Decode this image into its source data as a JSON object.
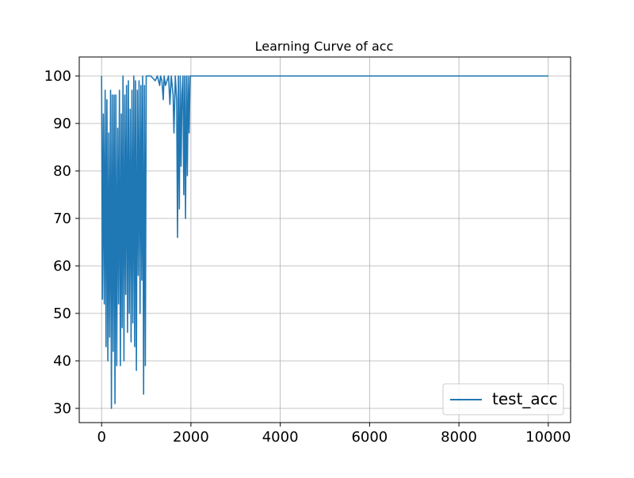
{
  "chart_data": {
    "type": "line",
    "title": "Learning Curve of acc",
    "xlabel": "",
    "ylabel": "",
    "xlim": [
      -500,
      10500
    ],
    "ylim": [
      27,
      104
    ],
    "xticks": [
      0,
      2000,
      4000,
      6000,
      8000,
      10000
    ],
    "xtick_labels": [
      "0",
      "2000",
      "4000",
      "6000",
      "8000",
      "10000"
    ],
    "yticks": [
      30,
      40,
      50,
      60,
      70,
      80,
      90,
      100
    ],
    "ytick_labels": [
      "30",
      "40",
      "50",
      "60",
      "70",
      "80",
      "90",
      "100"
    ],
    "grid": true,
    "legend_position": "lower right",
    "series": [
      {
        "name": "test_acc",
        "color": "#1f77b4",
        "x": [
          0,
          20,
          40,
          60,
          80,
          100,
          120,
          140,
          160,
          180,
          200,
          220,
          240,
          260,
          280,
          300,
          320,
          340,
          360,
          380,
          400,
          420,
          440,
          460,
          480,
          500,
          520,
          540,
          560,
          580,
          600,
          620,
          640,
          660,
          680,
          700,
          720,
          740,
          760,
          780,
          800,
          820,
          840,
          860,
          880,
          900,
          920,
          940,
          960,
          980,
          1000,
          1020,
          1100,
          1200,
          1250,
          1300,
          1320,
          1350,
          1380,
          1400,
          1430,
          1500,
          1530,
          1560,
          1600,
          1620,
          1650,
          1680,
          1700,
          1720,
          1740,
          1760,
          1780,
          1800,
          1820,
          1840,
          1860,
          1880,
          1900,
          1920,
          1940,
          1960,
          1980,
          2000,
          2050,
          3000,
          5000,
          7000,
          10000
        ],
        "y": [
          100,
          53,
          92,
          52,
          97,
          43,
          95,
          40,
          88,
          45,
          97,
          30,
          96,
          42,
          96,
          31,
          96,
          39,
          89,
          52,
          97,
          39,
          92,
          47,
          100,
          40,
          96,
          54,
          98,
          46,
          99,
          50,
          93,
          44,
          97,
          48,
          100,
          43,
          99,
          38,
          97,
          58,
          99,
          50,
          98,
          57,
          100,
          33,
          98,
          39,
          100,
          100,
          100,
          99,
          100,
          98,
          100,
          99,
          95,
          100,
          98,
          100,
          94,
          100,
          96,
          88,
          100,
          95,
          66,
          100,
          72,
          100,
          81,
          96,
          100,
          75,
          100,
          70,
          100,
          79,
          100,
          88,
          100,
          100,
          100,
          100,
          100,
          100,
          100
        ]
      }
    ]
  }
}
